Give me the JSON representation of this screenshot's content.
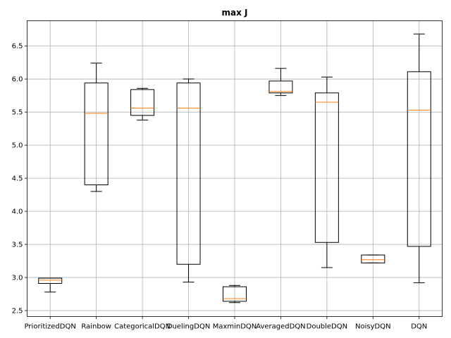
{
  "chart_data": {
    "type": "box",
    "title": "max J",
    "xlabel": "",
    "ylabel": "",
    "ylim": [
      2.41,
      6.88
    ],
    "yticks": [
      "2.5",
      "3.0",
      "3.5",
      "4.0",
      "4.5",
      "5.0",
      "5.5",
      "6.0",
      "6.5"
    ],
    "grid": true,
    "colors": {
      "box": "#000000",
      "median": "#ff7f0e",
      "grid": "#b0b0b0"
    },
    "categories": [
      "PrioritizedDQN",
      "Rainbow",
      "CategoricalDQN",
      "DuelingDQN",
      "MaxminDQN",
      "AveragedDQN",
      "DoubleDQN",
      "NoisyDQN",
      "DQN"
    ],
    "boxes": [
      {
        "name": "PrioritizedDQN",
        "whislo": 2.78,
        "q1": 2.91,
        "med": 2.96,
        "q3": 2.99,
        "whishi": 2.99
      },
      {
        "name": "Rainbow",
        "whislo": 4.3,
        "q1": 4.4,
        "med": 5.48,
        "q3": 5.94,
        "whishi": 6.24
      },
      {
        "name": "CategoricalDQN",
        "whislo": 5.38,
        "q1": 5.45,
        "med": 5.56,
        "q3": 5.84,
        "whishi": 5.86
      },
      {
        "name": "DuelingDQN",
        "whislo": 2.93,
        "q1": 3.2,
        "med": 5.56,
        "q3": 5.94,
        "whishi": 6.0
      },
      {
        "name": "MaxminDQN",
        "whislo": 2.62,
        "q1": 2.64,
        "med": 2.68,
        "q3": 2.86,
        "whishi": 2.88
      },
      {
        "name": "AveragedDQN",
        "whislo": 5.75,
        "q1": 5.79,
        "med": 5.81,
        "q3": 5.97,
        "whishi": 6.16
      },
      {
        "name": "DoubleDQN",
        "whislo": 3.15,
        "q1": 3.53,
        "med": 5.65,
        "q3": 5.79,
        "whishi": 6.03
      },
      {
        "name": "NoisyDQN",
        "whislo": 3.22,
        "q1": 3.22,
        "med": 3.27,
        "q3": 3.34,
        "whishi": 3.34
      },
      {
        "name": "DQN",
        "whislo": 2.92,
        "q1": 3.47,
        "med": 5.53,
        "q3": 6.11,
        "whishi": 6.68
      }
    ]
  }
}
